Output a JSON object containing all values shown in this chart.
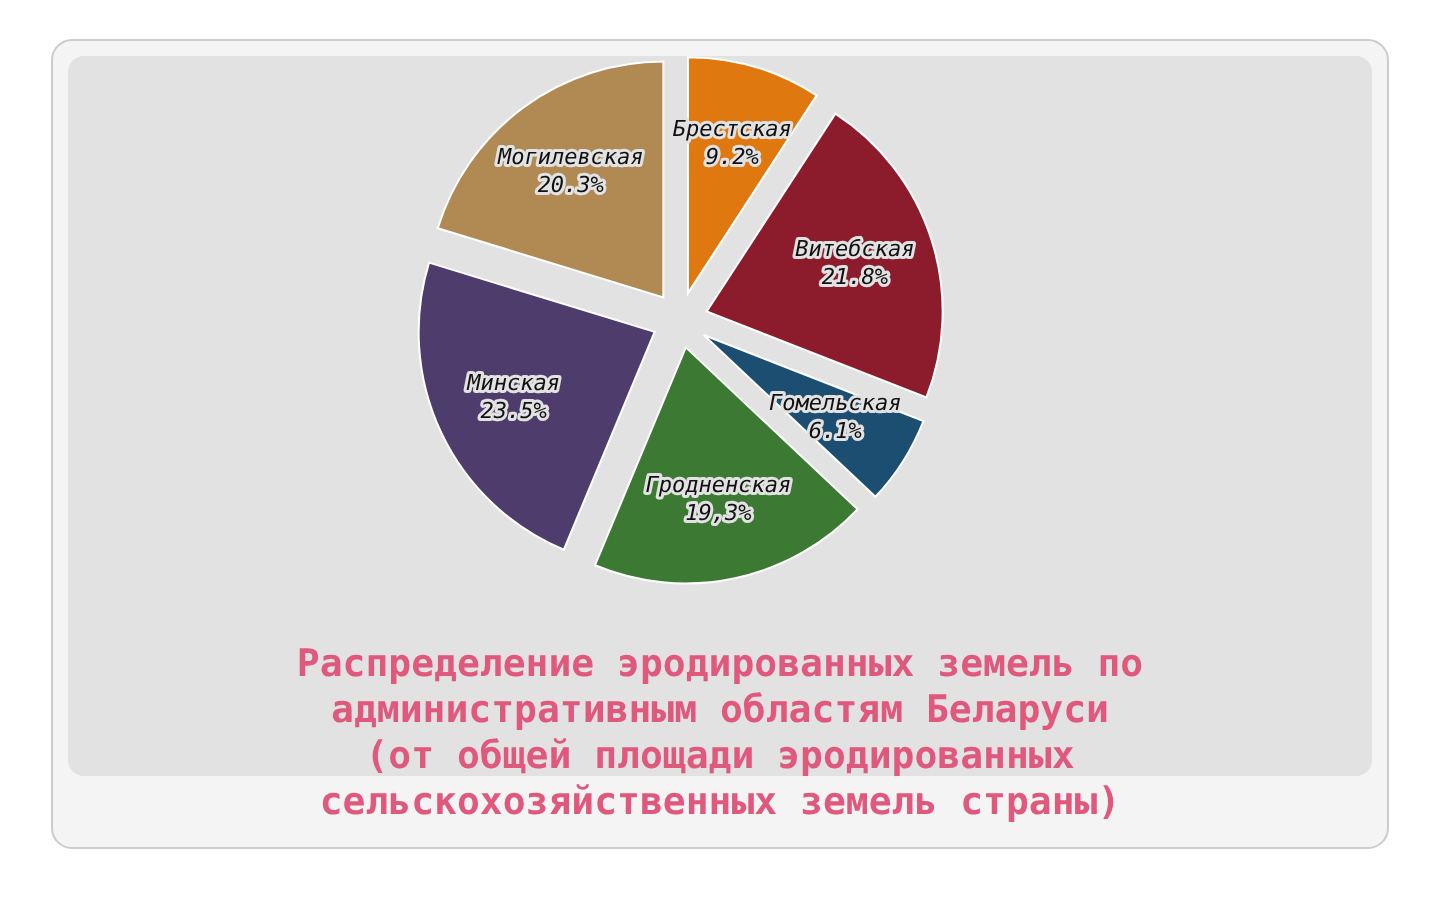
{
  "chart_data": {
    "type": "pie",
    "title": "Распределение эродированных земель по\nадминистративным областям Беларуси\n(от общей площади эродированных\nсельскохозяйственных земель страны)",
    "categories": [
      "Брестская",
      "Витебская",
      "Гомельская",
      "Гродненская",
      "Минская",
      "Могилевская"
    ],
    "values": [
      9.2,
      21.8,
      6.1,
      19.3,
      23.5,
      20.3
    ],
    "value_labels": [
      "9.2%",
      "21.8%",
      "6.1%",
      "19,3%",
      "23.5%",
      "20.3%"
    ],
    "colors": [
      "#e07810",
      "#8c1c2c",
      "#1c4e72",
      "#3c7a34",
      "#4e3c6c",
      "#b08a52"
    ],
    "legend": false
  }
}
